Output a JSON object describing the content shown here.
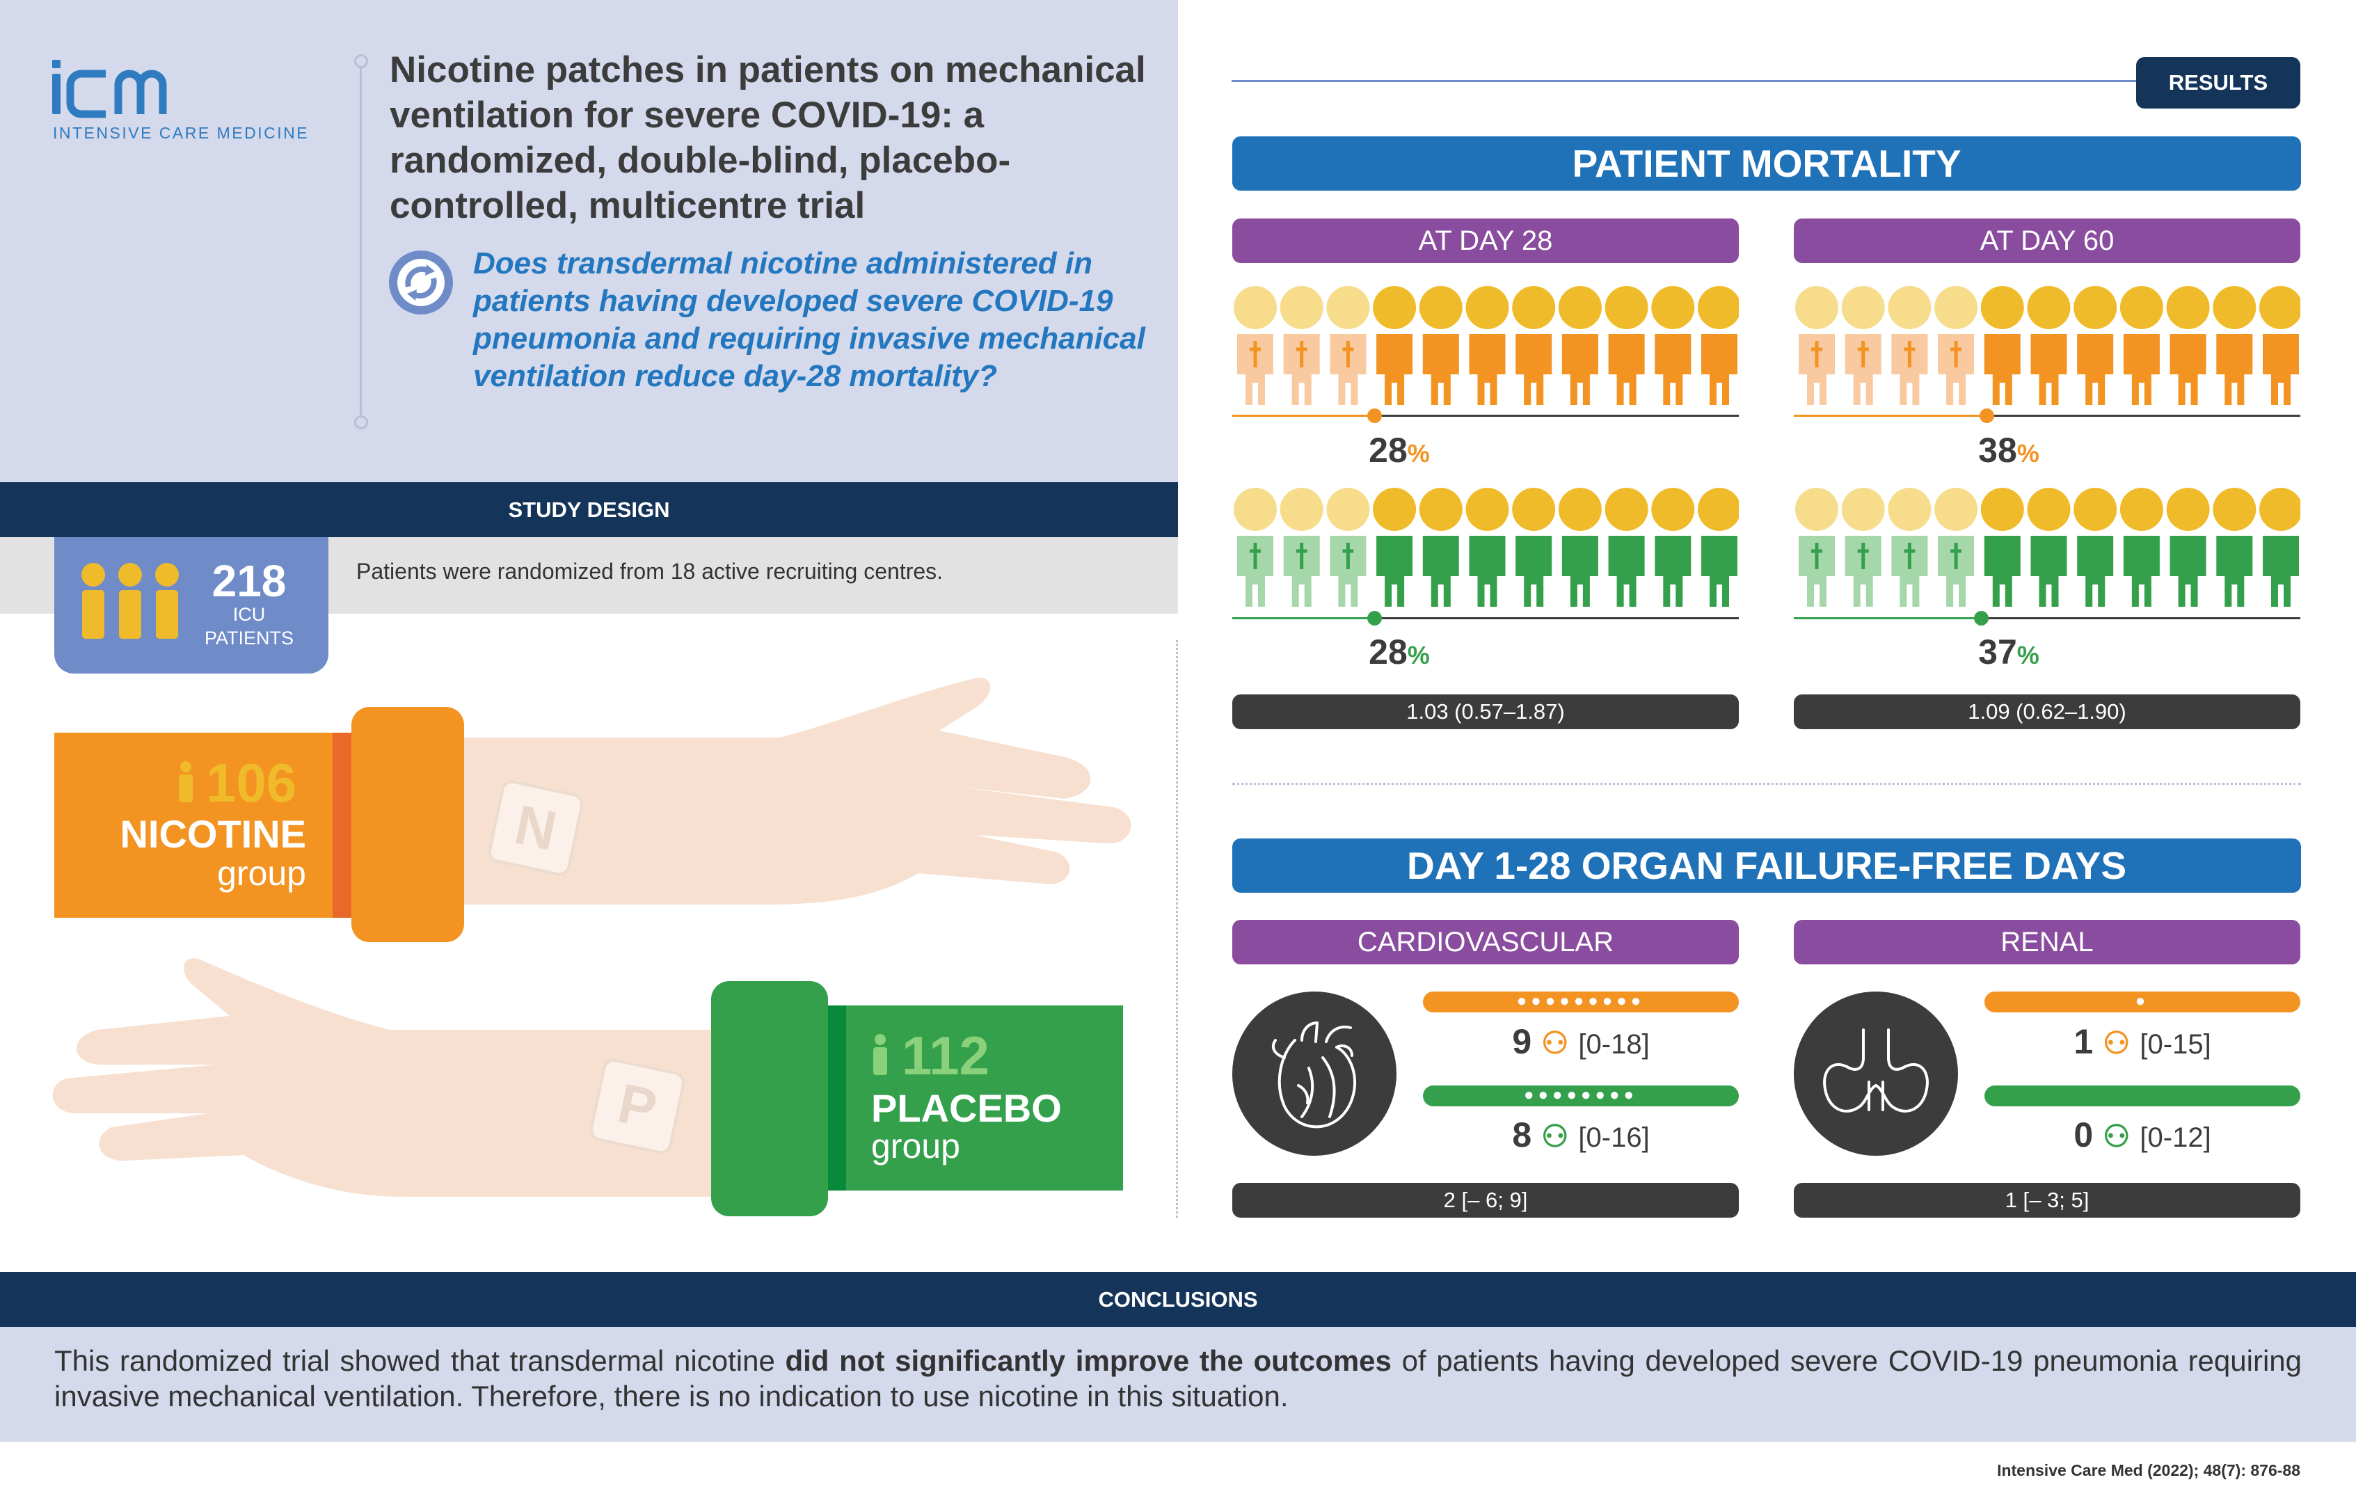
{
  "logo": {
    "mark": "icm",
    "subtitle": "INTENSIVE CARE MEDICINE"
  },
  "title": "Nicotine patches in patients on mechanical ventilation for severe COVID-19: a randomized, double-blind, placebo-controlled, multicentre trial",
  "question": "Does transdermal nicotine administered in patients having developed severe COVID-19 pneumonia and requiring invasive mechanical ventilation reduce day-28 mortality?",
  "study_design": {
    "header": "STUDY DESIGN",
    "total_patients": "218",
    "icu_label_1": "ICU",
    "icu_label_2": "PATIENTS",
    "text": "Patients were randomized from 18 active recruiting centres.",
    "nicotine": {
      "count": "106",
      "name": "NICOTINE",
      "group": "group",
      "patch_letter": "N"
    },
    "placebo": {
      "count": "112",
      "name": "PLACEBO",
      "group": "group",
      "patch_letter": "P"
    }
  },
  "results": {
    "badge": "RESULTS",
    "mortality": {
      "header": "PATIENT MORTALITY",
      "day28": {
        "label": "AT DAY 28",
        "nicotine_pct": 28,
        "placebo_pct": 28,
        "pct_symbol": "%",
        "ratio": "1.03 (0.57–1.87)"
      },
      "day60": {
        "label": "AT DAY 60",
        "nicotine_pct": 38,
        "placebo_pct": 37,
        "pct_symbol": "%",
        "ratio": "1.09 (0.62–1.90)"
      }
    },
    "organ": {
      "header": "DAY 1-28 ORGAN FAILURE-FREE DAYS",
      "cardio": {
        "label": "CARDIOVASCULAR",
        "nicotine_days": 9,
        "nicotine_range": "[0-18]",
        "placebo_days": 8,
        "placebo_range": "[0-16]",
        "diff": "2 [– 6; 9]"
      },
      "renal": {
        "label": "RENAL",
        "nicotine_days": 1,
        "nicotine_range": "[0-15]",
        "placebo_days": 0,
        "placebo_range": "[0-12]",
        "diff": "1 [– 3; 5]"
      }
    }
  },
  "conclusions": {
    "header": "CONCLUSIONS",
    "text_before": "This randomized trial showed that transdermal nicotine ",
    "text_bold": "did not significantly improve the outcomes",
    "text_after": " of patients having developed severe COVID-19 pneumonia requiring invasive mechanical ventilation. Therefore, there is no indication to use nicotine in this situation."
  },
  "citation": "Intensive Care Med (2022); 48(7): 876-88",
  "colors": {
    "nicotine": "#f39322",
    "placebo": "#35a04c",
    "navy": "#14345a",
    "blue": "#1f71b8",
    "purple": "#8a4c9e",
    "head": "#f0bb2a",
    "head_light": "#f7dc8c"
  }
}
